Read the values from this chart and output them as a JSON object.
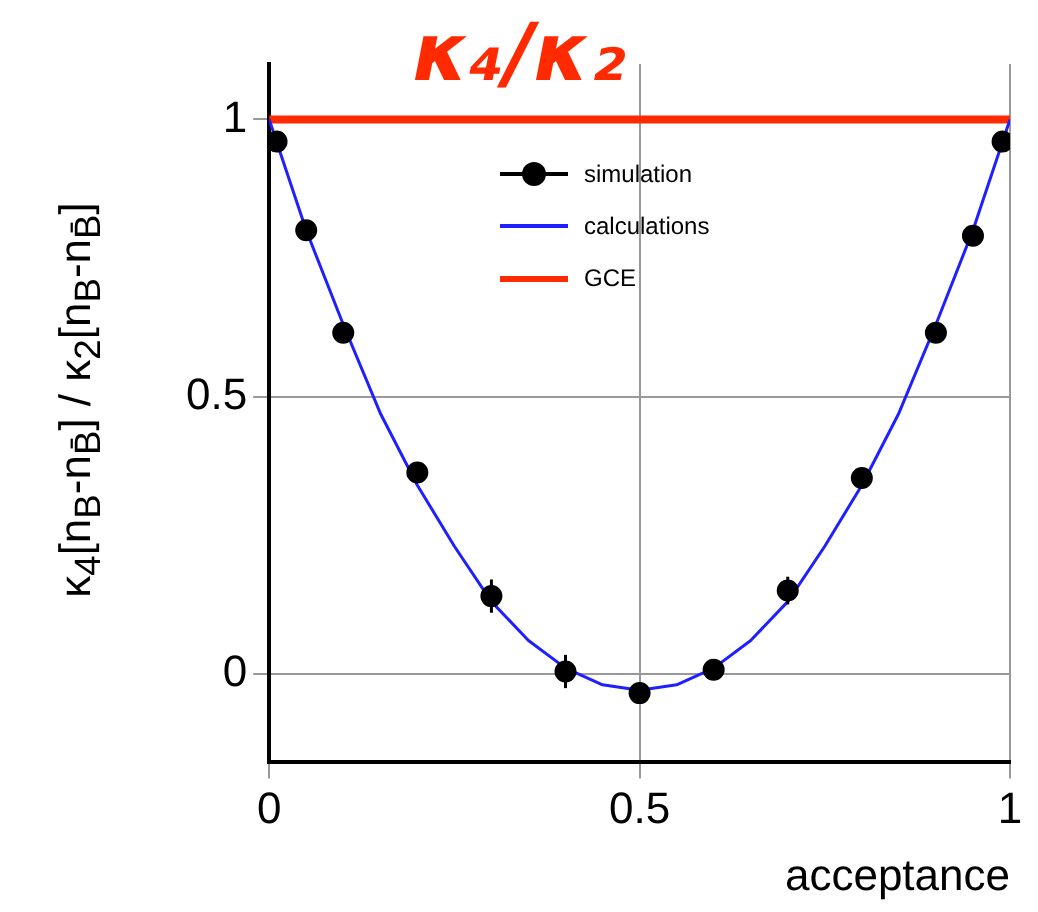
{
  "chart_data": {
    "type": "scatter",
    "title": "κ₄/κ₂",
    "xlabel": "acceptance",
    "ylabel": "κ$_{4}$[n$_{B}$-n$_{B̄}$] / κ$_{2}$[n$_{B}$-n$_{B̄}$]",
    "xlim": [
      0,
      1
    ],
    "xticks": [
      0,
      0.5,
      1
    ],
    "ylim": [
      -0.16,
      1.1
    ],
    "yticks": [
      0,
      0.5,
      1
    ],
    "grid": true,
    "legend": "top",
    "series": [
      {
        "name": "simulation",
        "marker": "circle",
        "color": "#000000",
        "x": [
          0.01,
          0.05,
          0.1,
          0.2,
          0.3,
          0.4,
          0.5,
          0.6,
          0.7,
          0.8,
          0.9,
          0.95,
          0.99
        ],
        "values": [
          0.96,
          0.8,
          0.615,
          0.363,
          0.14,
          0.004,
          -0.035,
          0.007,
          0.15,
          0.353,
          0.615,
          0.79,
          0.96
        ],
        "errors": [
          null,
          null,
          null,
          null,
          0.03,
          0.03,
          null,
          null,
          0.025,
          null,
          null,
          null,
          null
        ]
      },
      {
        "name": "calculations",
        "type": "line",
        "marker": "none",
        "color": "#2020ff",
        "x": [
          0,
          0.05,
          0.1,
          0.15,
          0.2,
          0.25,
          0.3,
          0.35,
          0.4,
          0.45,
          0.5,
          0.55,
          0.6,
          0.65,
          0.7,
          0.75,
          0.8,
          0.85,
          0.9,
          0.95,
          1
        ],
        "values": [
          1.0,
          0.8,
          0.63,
          0.47,
          0.34,
          0.23,
          0.13,
          0.06,
          0.01,
          -0.02,
          -0.03,
          -0.02,
          0.01,
          0.06,
          0.13,
          0.23,
          0.34,
          0.47,
          0.63,
          0.8,
          1.0
        ]
      },
      {
        "name": "GCE",
        "type": "line",
        "marker": "none",
        "color": "#ff2a00",
        "x": [
          0,
          1
        ],
        "values": [
          1,
          1
        ]
      }
    ]
  }
}
